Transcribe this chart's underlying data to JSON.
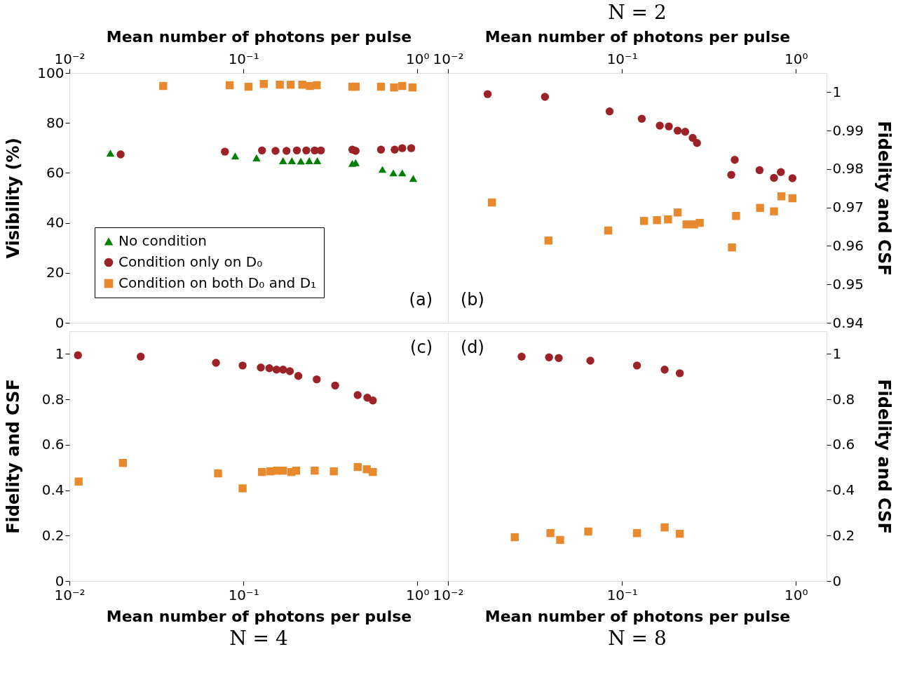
{
  "chart_data": [
    {
      "type": "scatter",
      "xlabel": "Mean number of photons per pulse",
      "ylabel": "Visibility (%)",
      "log": "x",
      "legend": "bottom left",
      "annotations": [
        "(a)"
      ],
      "xlim": [
        0.01,
        1.5
      ],
      "xticks": [
        {
          "value": 0.01,
          "label": "10⁻²"
        },
        {
          "value": 0.1,
          "label": "10⁻¹"
        },
        {
          "value": 1,
          "label": "10⁰"
        }
      ],
      "ylim": [
        0,
        100
      ],
      "yticks": [
        0,
        20,
        40,
        60,
        80,
        100
      ],
      "series": [
        {
          "name": "No condition",
          "color": "#008000",
          "marker": "triangle",
          "x": [
            0.0172,
            0.0897,
            0.119,
            0.169,
            0.19,
            0.214,
            0.239,
            0.266,
            0.423,
            0.442,
            0.63,
            0.728,
            0.819,
            0.947
          ],
          "values": [
            67.9,
            66.8,
            66.0,
            64.9,
            64.9,
            64.7,
            64.9,
            64.9,
            63.8,
            64.1,
            61.4,
            60.0,
            60.0,
            57.8
          ]
        },
        {
          "name": "Condition only on D₀",
          "color": "#9b2226",
          "marker": "circle",
          "x": [
            0.0197,
            0.0783,
            0.128,
            0.153,
            0.177,
            0.203,
            0.23,
            0.257,
            0.279,
            0.423,
            0.442,
            0.618,
            0.741,
            0.819,
            0.922
          ],
          "values": [
            67.4,
            68.5,
            69.0,
            68.8,
            68.8,
            69.0,
            69.0,
            69.0,
            69.0,
            69.3,
            68.8,
            69.3,
            69.3,
            69.9,
            69.9
          ]
        },
        {
          "name": "Condition on both D₀ and D₁",
          "color": "#e8892e",
          "marker": "square",
          "x": [
            0.0346,
            0.0834,
            0.107,
            0.131,
            0.162,
            0.187,
            0.218,
            0.241,
            0.264,
            0.423,
            0.442,
            0.618,
            0.735,
            0.819,
            0.938
          ],
          "values": [
            94.8,
            95.1,
            94.5,
            95.6,
            95.3,
            95.3,
            95.3,
            94.8,
            95.1,
            94.5,
            94.5,
            94.5,
            94.2,
            94.8,
            94.2
          ]
        }
      ]
    },
    {
      "type": "scatter",
      "title": "N = 2",
      "xlabel": "Mean number of photons per pulse",
      "y2label": "Fidelity and CSF",
      "log": "x",
      "annotations": [
        "(b)"
      ],
      "xlim": [
        0.01,
        1.5
      ],
      "xticks": [
        {
          "value": 0.01,
          "label": "10⁻²"
        },
        {
          "value": 0.1,
          "label": "10⁻¹"
        },
        {
          "value": 1,
          "label": "10⁰"
        }
      ],
      "y2lim": [
        0.94,
        1.005
      ],
      "y2ticks": [
        0.94,
        0.95,
        0.96,
        0.97,
        0.98,
        0.99,
        1
      ],
      "series": [
        {
          "color": "#9b2226",
          "marker": "circle",
          "axis": "y2",
          "x": [
            0.0169,
            0.0361,
            0.0849,
            0.13,
            0.165,
            0.186,
            0.209,
            0.231,
            0.255,
            0.27,
            0.425,
            0.445,
            0.618,
            0.748,
            0.819,
            0.955
          ],
          "values": [
            0.9995,
            0.9988,
            0.995,
            0.9931,
            0.9913,
            0.9911,
            0.99,
            0.9897,
            0.9881,
            0.9868,
            0.9785,
            0.9824,
            0.9797,
            0.9777,
            0.9792,
            0.9776
          ]
        },
        {
          "color": "#e8892e",
          "marker": "square",
          "axis": "y2",
          "x": [
            0.0179,
            0.0378,
            0.0834,
            0.134,
            0.159,
            0.184,
            0.209,
            0.235,
            0.26,
            0.28,
            0.429,
            0.453,
            0.622,
            0.748,
            0.826,
            0.955
          ],
          "values": [
            0.9713,
            0.9614,
            0.964,
            0.9665,
            0.9667,
            0.9669,
            0.9687,
            0.9656,
            0.9656,
            0.966,
            0.9596,
            0.9678,
            0.9699,
            0.969,
            0.9729,
            0.9724
          ]
        }
      ]
    },
    {
      "type": "scatter",
      "title": "N = 4",
      "xlabel": "Mean number of photons per pulse",
      "ylabel": "Fidelity and CSF",
      "log": "x",
      "annotations": [
        "(c)"
      ],
      "xlim": [
        0.01,
        1.5
      ],
      "xticks": [
        {
          "value": 0.01,
          "label": "10⁻²"
        },
        {
          "value": 0.1,
          "label": "10⁻¹"
        },
        {
          "value": 1,
          "label": "10⁰"
        }
      ],
      "ylim": [
        0,
        1.1
      ],
      "yticks": [
        0,
        0.2,
        0.4,
        0.6,
        0.8,
        1
      ],
      "series": [
        {
          "color": "#9b2226",
          "marker": "circle",
          "x": [
            0.0112,
            0.0257,
            0.0696,
            0.099,
            0.126,
            0.141,
            0.155,
            0.169,
            0.185,
            0.207,
            0.264,
            0.337,
            0.454,
            0.516,
            0.555
          ],
          "values": [
            0.994,
            0.988,
            0.961,
            0.949,
            0.94,
            0.937,
            0.931,
            0.931,
            0.924,
            0.903,
            0.888,
            0.861,
            0.819,
            0.807,
            0.795
          ]
        },
        {
          "color": "#e8892e",
          "marker": "square",
          "x": [
            0.0113,
            0.0203,
            0.0715,
            0.099,
            0.128,
            0.143,
            0.156,
            0.169,
            0.189,
            0.201,
            0.257,
            0.331,
            0.454,
            0.512,
            0.555
          ],
          "values": [
            0.438,
            0.52,
            0.474,
            0.408,
            0.48,
            0.483,
            0.486,
            0.486,
            0.48,
            0.486,
            0.486,
            0.483,
            0.502,
            0.492,
            0.48
          ]
        }
      ]
    },
    {
      "type": "scatter",
      "title": "N = 8",
      "xlabel": "Mean number of photons per pulse",
      "y2label": "Fidelity and CSF",
      "log": "x",
      "annotations": [
        "(d)"
      ],
      "xlim": [
        0.01,
        1.5
      ],
      "xticks": [
        {
          "value": 0.01,
          "label": "10⁻²"
        },
        {
          "value": 0.1,
          "label": "10⁻¹"
        },
        {
          "value": 1,
          "label": "10⁰"
        }
      ],
      "y2lim": [
        0,
        1.1
      ],
      "y2ticks": [
        0,
        0.2,
        0.4,
        0.6,
        0.8,
        1
      ],
      "series": [
        {
          "color": "#9b2226",
          "marker": "circle",
          "axis": "y2",
          "x": [
            0.0265,
            0.0381,
            0.0433,
            0.0658,
            0.122,
            0.176,
            0.215
          ],
          "values": [
            0.988,
            0.985,
            0.982,
            0.97,
            0.949,
            0.931,
            0.915
          ]
        },
        {
          "color": "#e8892e",
          "marker": "square",
          "axis": "y2",
          "x": [
            0.0242,
            0.0388,
            0.0441,
            0.064,
            0.122,
            0.176,
            0.215
          ],
          "values": [
            0.193,
            0.211,
            0.181,
            0.218,
            0.211,
            0.236,
            0.208
          ]
        }
      ]
    }
  ]
}
